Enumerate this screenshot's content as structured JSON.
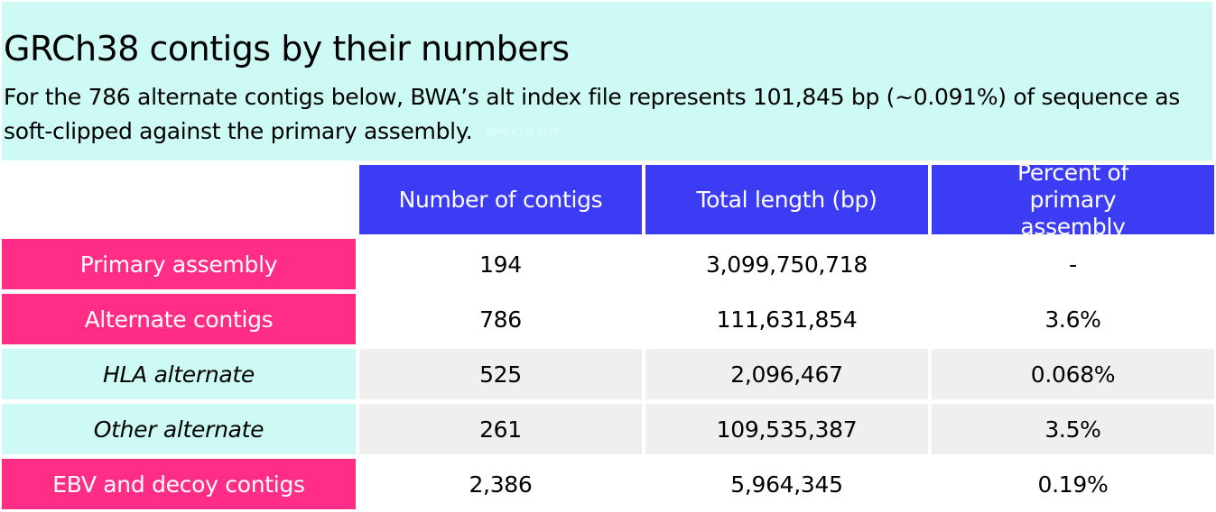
{
  "title": "GRCh38 contigs by their numbers",
  "subtitle": "For the 786 alternate contigs below, BWA’s alt index file represents 101,845 bp (~0.091%) of sequence as soft-clipped against the primary assembly.",
  "credit": "@shlee July 2016",
  "colors": {
    "header_bg": "#cdfaf4",
    "column_header": "#3d3cf5",
    "row_header_primary": "#ff2d86",
    "row_header_sub": "#cdfaf4",
    "row_stripe": "#efefef"
  },
  "table": {
    "columns": [
      "Number of contigs",
      "Total length (bp)",
      "Percent of primary assembly"
    ],
    "rows": [
      {
        "label": "Primary assembly",
        "count": "194",
        "length": "3,099,750,718",
        "percent": "-"
      },
      {
        "label": "Alternate contigs",
        "count": "786",
        "length": "111,631,854",
        "percent": "3.6%"
      },
      {
        "label": "HLA alternate",
        "count": "525",
        "length": "2,096,467",
        "percent": "0.068%"
      },
      {
        "label": "Other alternate",
        "count": "261",
        "length": "109,535,387",
        "percent": "3.5%"
      },
      {
        "label": "EBV and decoy contigs",
        "count": "2,386",
        "length": "5,964,345",
        "percent": "0.19%"
      }
    ]
  }
}
